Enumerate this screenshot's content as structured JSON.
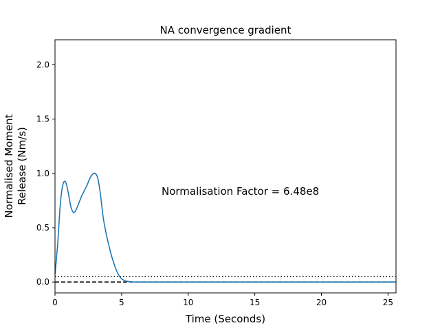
{
  "chart_data": {
    "type": "line",
    "title": "NA convergence gradient",
    "xlabel": "Time (Seconds)",
    "ylabel_line1": "Normalised Moment",
    "ylabel_line2": "Release (Nm/s)",
    "annotation": "Normalisation Factor = 6.48e8",
    "xlim": [
      0,
      25.6
    ],
    "ylim": [
      -0.1,
      2.23
    ],
    "x_ticks": [
      0,
      5,
      10,
      15,
      20,
      25
    ],
    "x_tick_labels": [
      "0",
      "5",
      "10",
      "15",
      "20",
      "25"
    ],
    "y_ticks": [
      0.0,
      0.5,
      1.0,
      1.5,
      2.0
    ],
    "y_tick_labels": [
      "0.0",
      "0.5",
      "1.0",
      "1.5",
      "2.0"
    ],
    "grid": false,
    "reference_lines": [
      {
        "y": 0.05,
        "style": "dotted",
        "color": "#000000"
      },
      {
        "y": 0.0,
        "style": "dashed",
        "color": "#000000"
      }
    ],
    "series": [
      {
        "color": "#1f77b4",
        "x": [
          0,
          0.2,
          0.4,
          0.6,
          0.8,
          1.0,
          1.2,
          1.4,
          1.6,
          1.8,
          2.0,
          2.2,
          2.4,
          2.6,
          2.8,
          3.0,
          3.2,
          3.4,
          3.6,
          3.8,
          4.0,
          4.2,
          4.4,
          4.6,
          4.8,
          5.0,
          5.2,
          5.4,
          5.6,
          5.8,
          6.0,
          8,
          10,
          15,
          20,
          25.6
        ],
        "y": [
          0.07,
          0.35,
          0.72,
          0.9,
          0.92,
          0.82,
          0.69,
          0.64,
          0.67,
          0.73,
          0.79,
          0.84,
          0.89,
          0.95,
          0.99,
          1.0,
          0.96,
          0.82,
          0.61,
          0.47,
          0.36,
          0.26,
          0.18,
          0.11,
          0.06,
          0.03,
          0.015,
          0.007,
          0.003,
          0.001,
          0.0,
          0.0,
          0.0,
          0.0,
          0.0,
          0.0
        ]
      }
    ]
  }
}
